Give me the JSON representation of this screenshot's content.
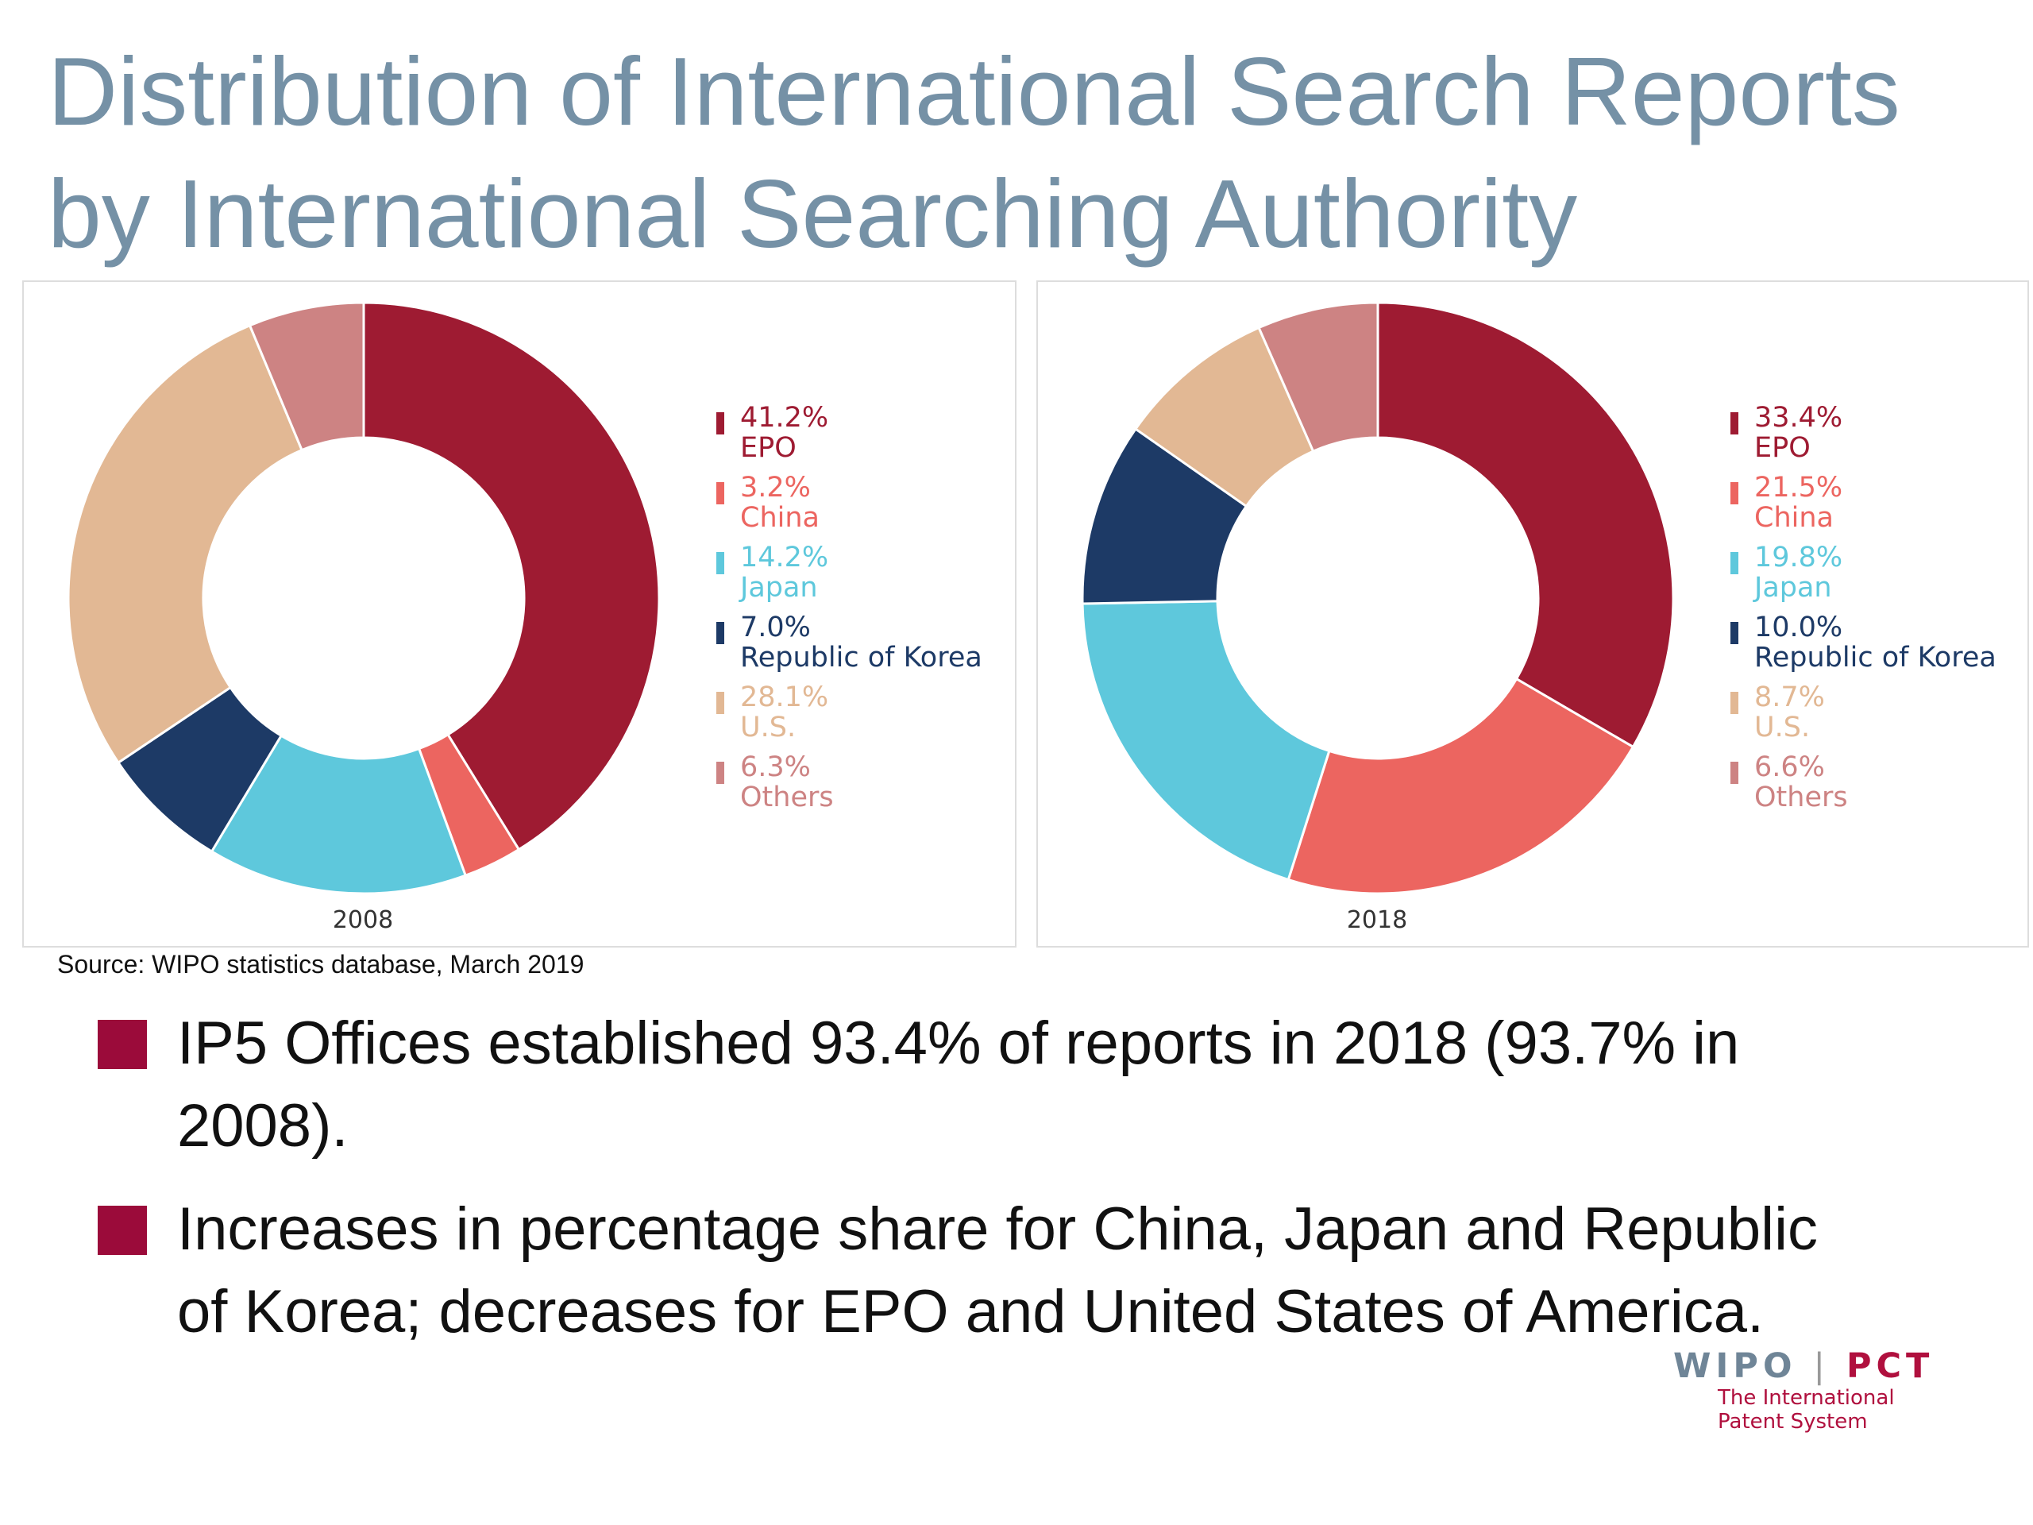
{
  "title_line1": "Distribution of International Search Reports",
  "title_line2": "by International Searching Authority",
  "chart_data": [
    {
      "type": "pie",
      "title": "2008",
      "categories": [
        "EPO",
        "China",
        "Japan",
        "Republic of Korea",
        "U.S.",
        "Others"
      ],
      "values": [
        41.2,
        3.2,
        14.2,
        7.0,
        28.1,
        6.3
      ],
      "labels": [
        "41.2%",
        "3.2%",
        "14.2%",
        "7.0%",
        "28.1%",
        "6.3%"
      ],
      "colors": [
        "#9e1b32",
        "#ec6560",
        "#5ec8dc",
        "#1d3a66",
        "#e2b894",
        "#cd8383"
      ],
      "legend_placement": "right"
    },
    {
      "type": "pie",
      "title": "2018",
      "categories": [
        "EPO",
        "China",
        "Japan",
        "Republic of Korea",
        "U.S.",
        "Others"
      ],
      "values": [
        33.4,
        21.5,
        19.8,
        10.0,
        8.7,
        6.6
      ],
      "labels": [
        "33.4%",
        "21.5%",
        "19.8%",
        "10.0%",
        "8.7%",
        "6.6%"
      ],
      "colors": [
        "#9e1b32",
        "#ec6560",
        "#5ec8dc",
        "#1d3a66",
        "#e2b894",
        "#cd8383"
      ],
      "legend_placement": "right"
    }
  ],
  "source": "Source: WIPO statistics database, March 2019",
  "bullets": [
    "IP5 Offices established 93.4% of reports in 2018 (93.7% in 2008).",
    "Increases in percentage share for China, Japan and Republic of Korea; decreases for EPO and United States of America."
  ],
  "bullet_color": "#9b0b3a",
  "logo": {
    "wipo": "WIPO",
    "separator": "|",
    "pct": "PCT",
    "subtitle_line1": "The International",
    "subtitle_line2": "Patent System"
  }
}
